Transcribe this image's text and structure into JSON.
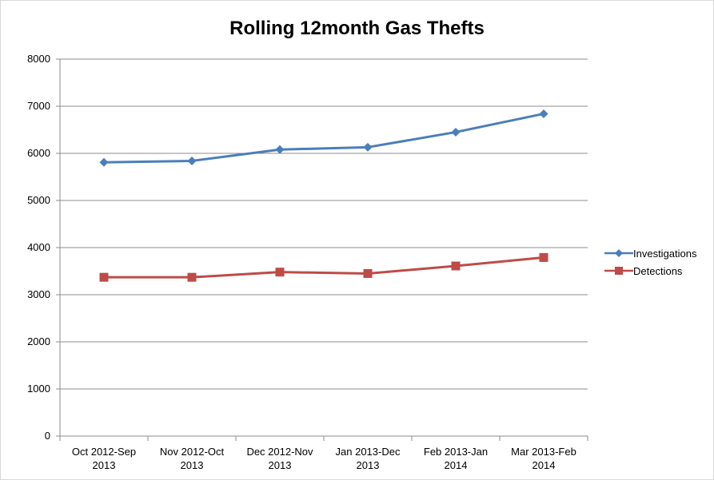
{
  "chart_data": {
    "type": "line",
    "title": "Rolling 12month Gas Thefts",
    "xlabel": "",
    "ylabel": "",
    "ylim": [
      0,
      8000
    ],
    "yticks": [
      "0",
      "1000",
      "2000",
      "3000",
      "4000",
      "5000",
      "6000",
      "7000",
      "8000"
    ],
    "categories": [
      [
        "Oct 2012-Sep",
        "2013"
      ],
      [
        "Nov 2012-Oct",
        "2013"
      ],
      [
        "Dec 2012-Nov",
        "2013"
      ],
      [
        "Jan 2013-Dec",
        "2013"
      ],
      [
        "Feb 2013-Jan",
        "2014"
      ],
      [
        "Mar 2013-Feb",
        "2014"
      ]
    ],
    "grid": true,
    "legend_position": "right",
    "series": [
      {
        "name": "Investigations",
        "color": "#4a7ebb",
        "marker": "diamond",
        "values": [
          5810,
          5840,
          6080,
          6130,
          6450,
          6840
        ]
      },
      {
        "name": "Detections",
        "color": "#be4b48",
        "marker": "square",
        "values": [
          3370,
          3370,
          3480,
          3450,
          3610,
          3790
        ]
      }
    ]
  }
}
